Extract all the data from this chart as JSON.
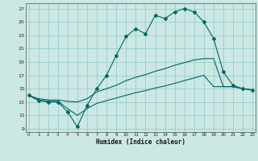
{
  "title": "",
  "xlabel": "Humidex (Indice chaleur)",
  "bg_color": "#cce8e4",
  "grid_color": "#99cccc",
  "line_color": "#006666",
  "x_ticks": [
    0,
    1,
    2,
    3,
    4,
    5,
    6,
    7,
    8,
    9,
    10,
    11,
    12,
    13,
    14,
    15,
    16,
    17,
    18,
    19,
    20,
    21,
    22,
    23
  ],
  "y_ticks": [
    9,
    11,
    13,
    15,
    17,
    19,
    21,
    23,
    25,
    27
  ],
  "xlim": [
    -0.3,
    23.3
  ],
  "ylim": [
    8.5,
    27.8
  ],
  "s1_x": [
    0,
    1,
    2,
    3,
    4,
    5,
    6,
    7,
    8,
    9,
    10,
    11,
    12,
    13,
    14,
    15,
    16,
    17,
    18,
    19,
    20,
    21,
    22,
    23
  ],
  "s1_y": [
    14.0,
    13.2,
    13.0,
    13.0,
    11.5,
    9.3,
    12.5,
    15.0,
    17.0,
    20.0,
    22.8,
    24.0,
    23.2,
    26.0,
    25.5,
    26.5,
    27.0,
    26.5,
    25.0,
    22.5,
    17.5,
    15.5,
    15.0,
    14.8
  ],
  "s2_x": [
    0,
    1,
    2,
    3,
    4,
    5,
    6,
    7,
    8,
    9,
    10,
    11,
    12,
    13,
    14,
    15,
    16,
    17,
    18,
    19,
    20,
    21,
    22,
    23
  ],
  "s2_y": [
    14.0,
    13.5,
    13.3,
    13.3,
    13.1,
    13.0,
    13.5,
    14.5,
    15.0,
    15.5,
    16.2,
    16.7,
    17.1,
    17.6,
    18.0,
    18.5,
    18.9,
    19.3,
    19.5,
    19.5,
    15.3,
    15.3,
    15.0,
    14.8
  ],
  "s3_x": [
    0,
    1,
    2,
    3,
    4,
    5,
    6,
    7,
    8,
    9,
    10,
    11,
    12,
    13,
    14,
    15,
    16,
    17,
    18,
    19,
    20,
    21,
    22,
    23
  ],
  "s3_y": [
    14.0,
    13.3,
    13.1,
    13.1,
    12.0,
    11.0,
    12.0,
    12.8,
    13.2,
    13.6,
    14.0,
    14.4,
    14.7,
    15.1,
    15.4,
    15.8,
    16.2,
    16.6,
    17.0,
    15.3,
    15.3,
    15.3,
    15.0,
    14.8
  ]
}
